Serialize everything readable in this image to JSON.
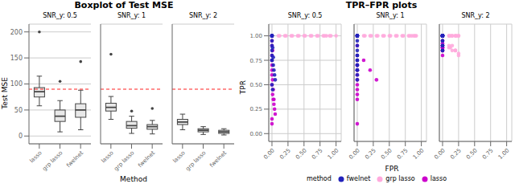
{
  "chart_data": [
    {
      "type": "box",
      "title": "Boxplot of Test MSE",
      "x_label": "Method",
      "y_label": "Test MSE",
      "categories": [
        "lasso",
        "grp lasso",
        "fwelnet"
      ],
      "color": "#444444",
      "ylim": [
        -15,
        215
      ],
      "yticks": [
        0,
        50,
        100,
        150,
        200
      ],
      "grid": true,
      "annotations": [
        {
          "type": "hline",
          "y": 90,
          "color": "#ff2222",
          "line_style": "dashed"
        }
      ],
      "panels": [
        {
          "title": "SNR_y: 0.5",
          "boxes": [
            {
              "q1": 75,
              "med": 85,
              "q3": 93,
              "whislo": 58,
              "whishi": 115,
              "fliers": [
                200
              ]
            },
            {
              "q1": 28,
              "med": 38,
              "q3": 50,
              "whislo": 8,
              "whishi": 68,
              "fliers": [
                105
              ]
            },
            {
              "q1": 36,
              "med": 50,
              "q3": 62,
              "whislo": 12,
              "whishi": 88,
              "fliers": [
                143
              ]
            }
          ]
        },
        {
          "title": "SNR_y: 1",
          "boxes": [
            {
              "q1": 48,
              "med": 55,
              "q3": 63,
              "whislo": 32,
              "whishi": 76,
              "fliers": [
                157
              ]
            },
            {
              "q1": 15,
              "med": 20,
              "q3": 28,
              "whislo": 5,
              "whishi": 38,
              "fliers": [
                48
              ]
            },
            {
              "q1": 13,
              "med": 18,
              "q3": 22,
              "whislo": 4,
              "whishi": 30,
              "fliers": [
                53
              ]
            }
          ]
        },
        {
          "title": "SNR_y: 2",
          "boxes": [
            {
              "q1": 22,
              "med": 27,
              "q3": 32,
              "whislo": 12,
              "whishi": 42,
              "fliers": []
            },
            {
              "q1": 8,
              "med": 11,
              "q3": 14,
              "whislo": 3,
              "whishi": 18,
              "fliers": []
            },
            {
              "q1": 5,
              "med": 8,
              "q3": 11,
              "whislo": 2,
              "whishi": 14,
              "fliers": []
            }
          ]
        }
      ]
    },
    {
      "type": "scatter",
      "title": "TPR–FPR plots",
      "x_label": "FPR",
      "y_label": "TPR",
      "xlim": [
        -0.05,
        1.08
      ],
      "ylim": [
        -0.08,
        1.12
      ],
      "xticks": [
        {
          "value": 0.0,
          "label": "0.00"
        },
        {
          "value": 0.25,
          "label": "0.25"
        },
        {
          "value": 0.5,
          "label": "0.50"
        },
        {
          "value": 0.75,
          "label": "0.75"
        },
        {
          "value": 1.0,
          "label": "1.00"
        }
      ],
      "yticks": [
        {
          "value": 0.0,
          "label": "0.00"
        },
        {
          "value": 0.25,
          "label": "0.25"
        },
        {
          "value": 0.5,
          "label": "0.50"
        },
        {
          "value": 0.75,
          "label": "0.75"
        },
        {
          "value": 1.0,
          "label": "1.00"
        }
      ],
      "grid": true,
      "legend": "bottom",
      "legend_title": "method",
      "series": [
        {
          "name": "fwelnet",
          "color": "#2222bb"
        },
        {
          "name": "grp lasso",
          "color": "#ffaadd"
        },
        {
          "name": "lasso",
          "color": "#cc00cc"
        }
      ],
      "panels": [
        {
          "title": "SNR_y: 0.5",
          "series": [
            {
              "x": [
                0.0,
                0.0,
                0.0,
                0.0,
                0.0,
                0.0,
                0.0,
                0.0,
                0.02,
                0.03,
                0.04,
                0.05,
                0.0,
                0.01,
                0.02,
                0.0,
                0.0,
                0.0,
                0.0,
                0.01
              ],
              "y": [
                1.0,
                1.0,
                1.0,
                1.0,
                0.9,
                0.85,
                0.8,
                0.75,
                0.7,
                0.65,
                0.6,
                0.55,
                0.95,
                0.88,
                0.78,
                1.0,
                1.0,
                0.75,
                0.5,
                0.45
              ]
            },
            {
              "x": [
                0.1,
                0.2,
                0.3,
                0.4,
                0.5,
                0.6,
                0.7,
                0.8,
                0.85,
                0.9,
                0.12,
                0.22,
                0.32,
                0.42,
                0.52,
                0.62,
                0.72,
                0.82,
                0.92,
                1.0
              ],
              "y": [
                1.0,
                1.0,
                1.0,
                1.0,
                1.0,
                1.0,
                1.0,
                1.0,
                1.0,
                1.0,
                1.0,
                1.0,
                1.0,
                1.0,
                1.0,
                1.0,
                1.0,
                1.0,
                1.0,
                1.0
              ]
            },
            {
              "x": [
                0.0,
                0.0,
                0.0,
                0.0,
                0.0,
                0.01,
                0.02,
                0.03,
                0.04,
                0.05,
                0.0,
                0.0,
                0.01,
                0.02,
                0.03,
                0.0,
                0.0,
                0.01,
                0.0,
                0.0
              ],
              "y": [
                0.9,
                0.8,
                0.7,
                0.6,
                0.5,
                0.4,
                0.35,
                0.3,
                0.25,
                0.2,
                0.75,
                0.65,
                0.55,
                0.45,
                0.35,
                1.0,
                0.95,
                0.85,
                0.15,
                0.1
              ]
            }
          ]
        },
        {
          "title": "SNR_y: 1",
          "series": [
            {
              "x": [
                0.0,
                0.0,
                0.0,
                0.0,
                0.0,
                0.0,
                0.0,
                0.0,
                0.0,
                0.0,
                0.0,
                0.0,
                0.0,
                0.0,
                0.0,
                0.0,
                0.0,
                0.0,
                0.0,
                0.0
              ],
              "y": [
                1.0,
                1.0,
                1.0,
                1.0,
                1.0,
                0.9,
                0.8,
                0.75,
                0.7,
                0.65,
                0.6,
                0.55,
                1.0,
                1.0,
                0.95,
                0.85,
                0.75,
                0.7,
                0.65,
                0.8
              ]
            },
            {
              "x": [
                0.1,
                0.2,
                0.3,
                0.4,
                0.5,
                0.6,
                0.7,
                0.8,
                0.85,
                0.9,
                0.12,
                0.22,
                0.32,
                0.42,
                0.52,
                0.62,
                0.72,
                0.82,
                0.88,
                0.92
              ],
              "y": [
                1.0,
                1.0,
                1.0,
                1.0,
                1.0,
                1.0,
                1.0,
                1.0,
                1.0,
                1.0,
                1.0,
                1.0,
                1.0,
                1.0,
                1.0,
                1.0,
                1.0,
                1.0,
                1.0,
                1.0
              ]
            },
            {
              "x": [
                0.0,
                0.0,
                0.0,
                0.0,
                0.0,
                0.0,
                0.0,
                0.0,
                0.0,
                0.0,
                0.0,
                0.1,
                0.2,
                0.3,
                0.0,
                0.0,
                0.0,
                0.0,
                0.0,
                0.0
              ],
              "y": [
                1.0,
                1.0,
                0.9,
                0.8,
                0.7,
                0.65,
                0.75,
                0.7,
                0.4,
                0.35,
                0.1,
                0.75,
                0.65,
                0.55,
                0.5,
                0.45,
                0.7,
                0.65,
                0.6,
                0.55
              ]
            }
          ]
        },
        {
          "title": "SNR_y: 2",
          "series": [
            {
              "x": [
                0.0,
                0.0,
                0.0,
                0.0,
                0.0,
                0.0,
                0.0,
                0.0,
                0.0,
                0.0,
                0.0,
                0.0,
                0.0,
                0.0,
                0.0,
                0.0,
                0.0,
                0.0,
                0.0,
                0.0
              ],
              "y": [
                1.0,
                1.0,
                1.0,
                1.0,
                1.0,
                1.0,
                1.0,
                1.0,
                1.0,
                1.0,
                1.0,
                1.0,
                1.0,
                0.95,
                0.9,
                0.9,
                0.85,
                0.85,
                0.9,
                0.95
              ]
            },
            {
              "x": [
                0.1,
                0.2,
                0.25,
                0.15,
                0.1,
                0.2,
                0.25,
                0.15,
                0.12,
                0.22,
                0.1,
                0.2,
                0.25,
                0.15,
                0.12,
                0.2,
                0.25,
                0.15,
                0.1,
                0.2
              ],
              "y": [
                1.0,
                1.0,
                1.0,
                1.0,
                1.0,
                1.0,
                1.0,
                1.0,
                1.0,
                1.0,
                0.9,
                0.85,
                0.8,
                0.85,
                0.88,
                0.85,
                0.82,
                0.9,
                0.88,
                0.85
              ]
            },
            {
              "x": [
                0.0,
                0.0,
                0.0,
                0.0,
                0.0,
                0.0,
                0.0,
                0.0,
                0.0,
                0.0,
                0.0,
                0.0,
                0.0,
                0.0,
                0.0,
                0.0,
                0.0,
                0.0,
                0.0,
                0.0
              ],
              "y": [
                1.0,
                1.0,
                1.0,
                1.0,
                1.0,
                1.0,
                1.0,
                1.0,
                0.95,
                0.9,
                0.85,
                0.8,
                0.9,
                0.88,
                0.85,
                0.88,
                0.9,
                0.92,
                0.88,
                0.85
              ]
            }
          ]
        }
      ]
    }
  ]
}
